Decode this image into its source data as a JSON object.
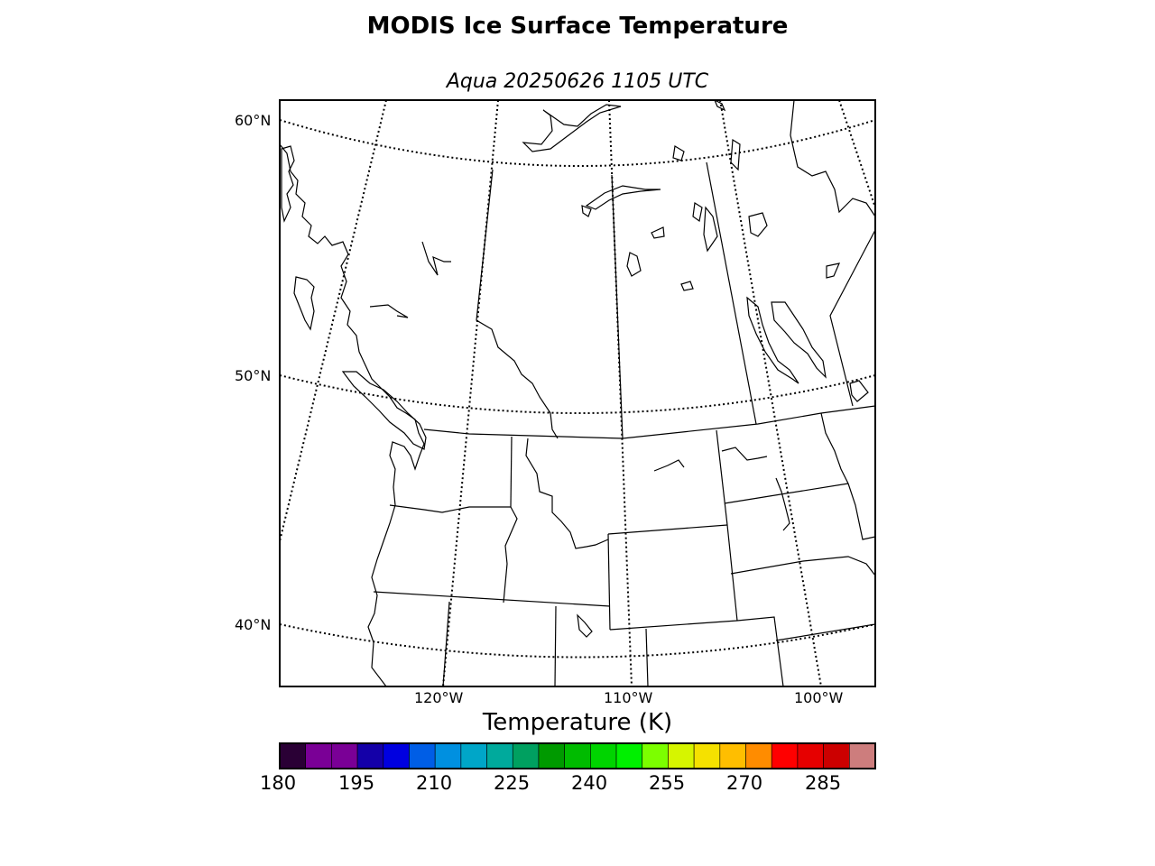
{
  "title": "MODIS Ice Surface Temperature",
  "subtitle": "Aqua 20250626 1105 UTC",
  "map": {
    "lat_labels": [
      "60°N",
      "50°N",
      "40°N"
    ],
    "lon_labels": [
      "120°W",
      "110°W",
      "100°W"
    ],
    "graticule_style": "dotted",
    "coastline_color": "#000000"
  },
  "colorbar": {
    "title": "Temperature (K)",
    "tick_labels": [
      "180",
      "195",
      "210",
      "225",
      "240",
      "255",
      "270",
      "285"
    ],
    "min": 180,
    "max": 295,
    "step": 5,
    "colors": [
      "#2a0035",
      "#7a0096",
      "#7a0096",
      "#1400a8",
      "#0000e0",
      "#005ee6",
      "#0090e0",
      "#00a6c8",
      "#00aa9c",
      "#00a060",
      "#009a00",
      "#00bb00",
      "#00d400",
      "#00f000",
      "#7cff00",
      "#d6f500",
      "#f5e100",
      "#ffbe00",
      "#ff8c00",
      "#ff0000",
      "#e60000",
      "#cc0000",
      "#cd7d7d"
    ]
  }
}
